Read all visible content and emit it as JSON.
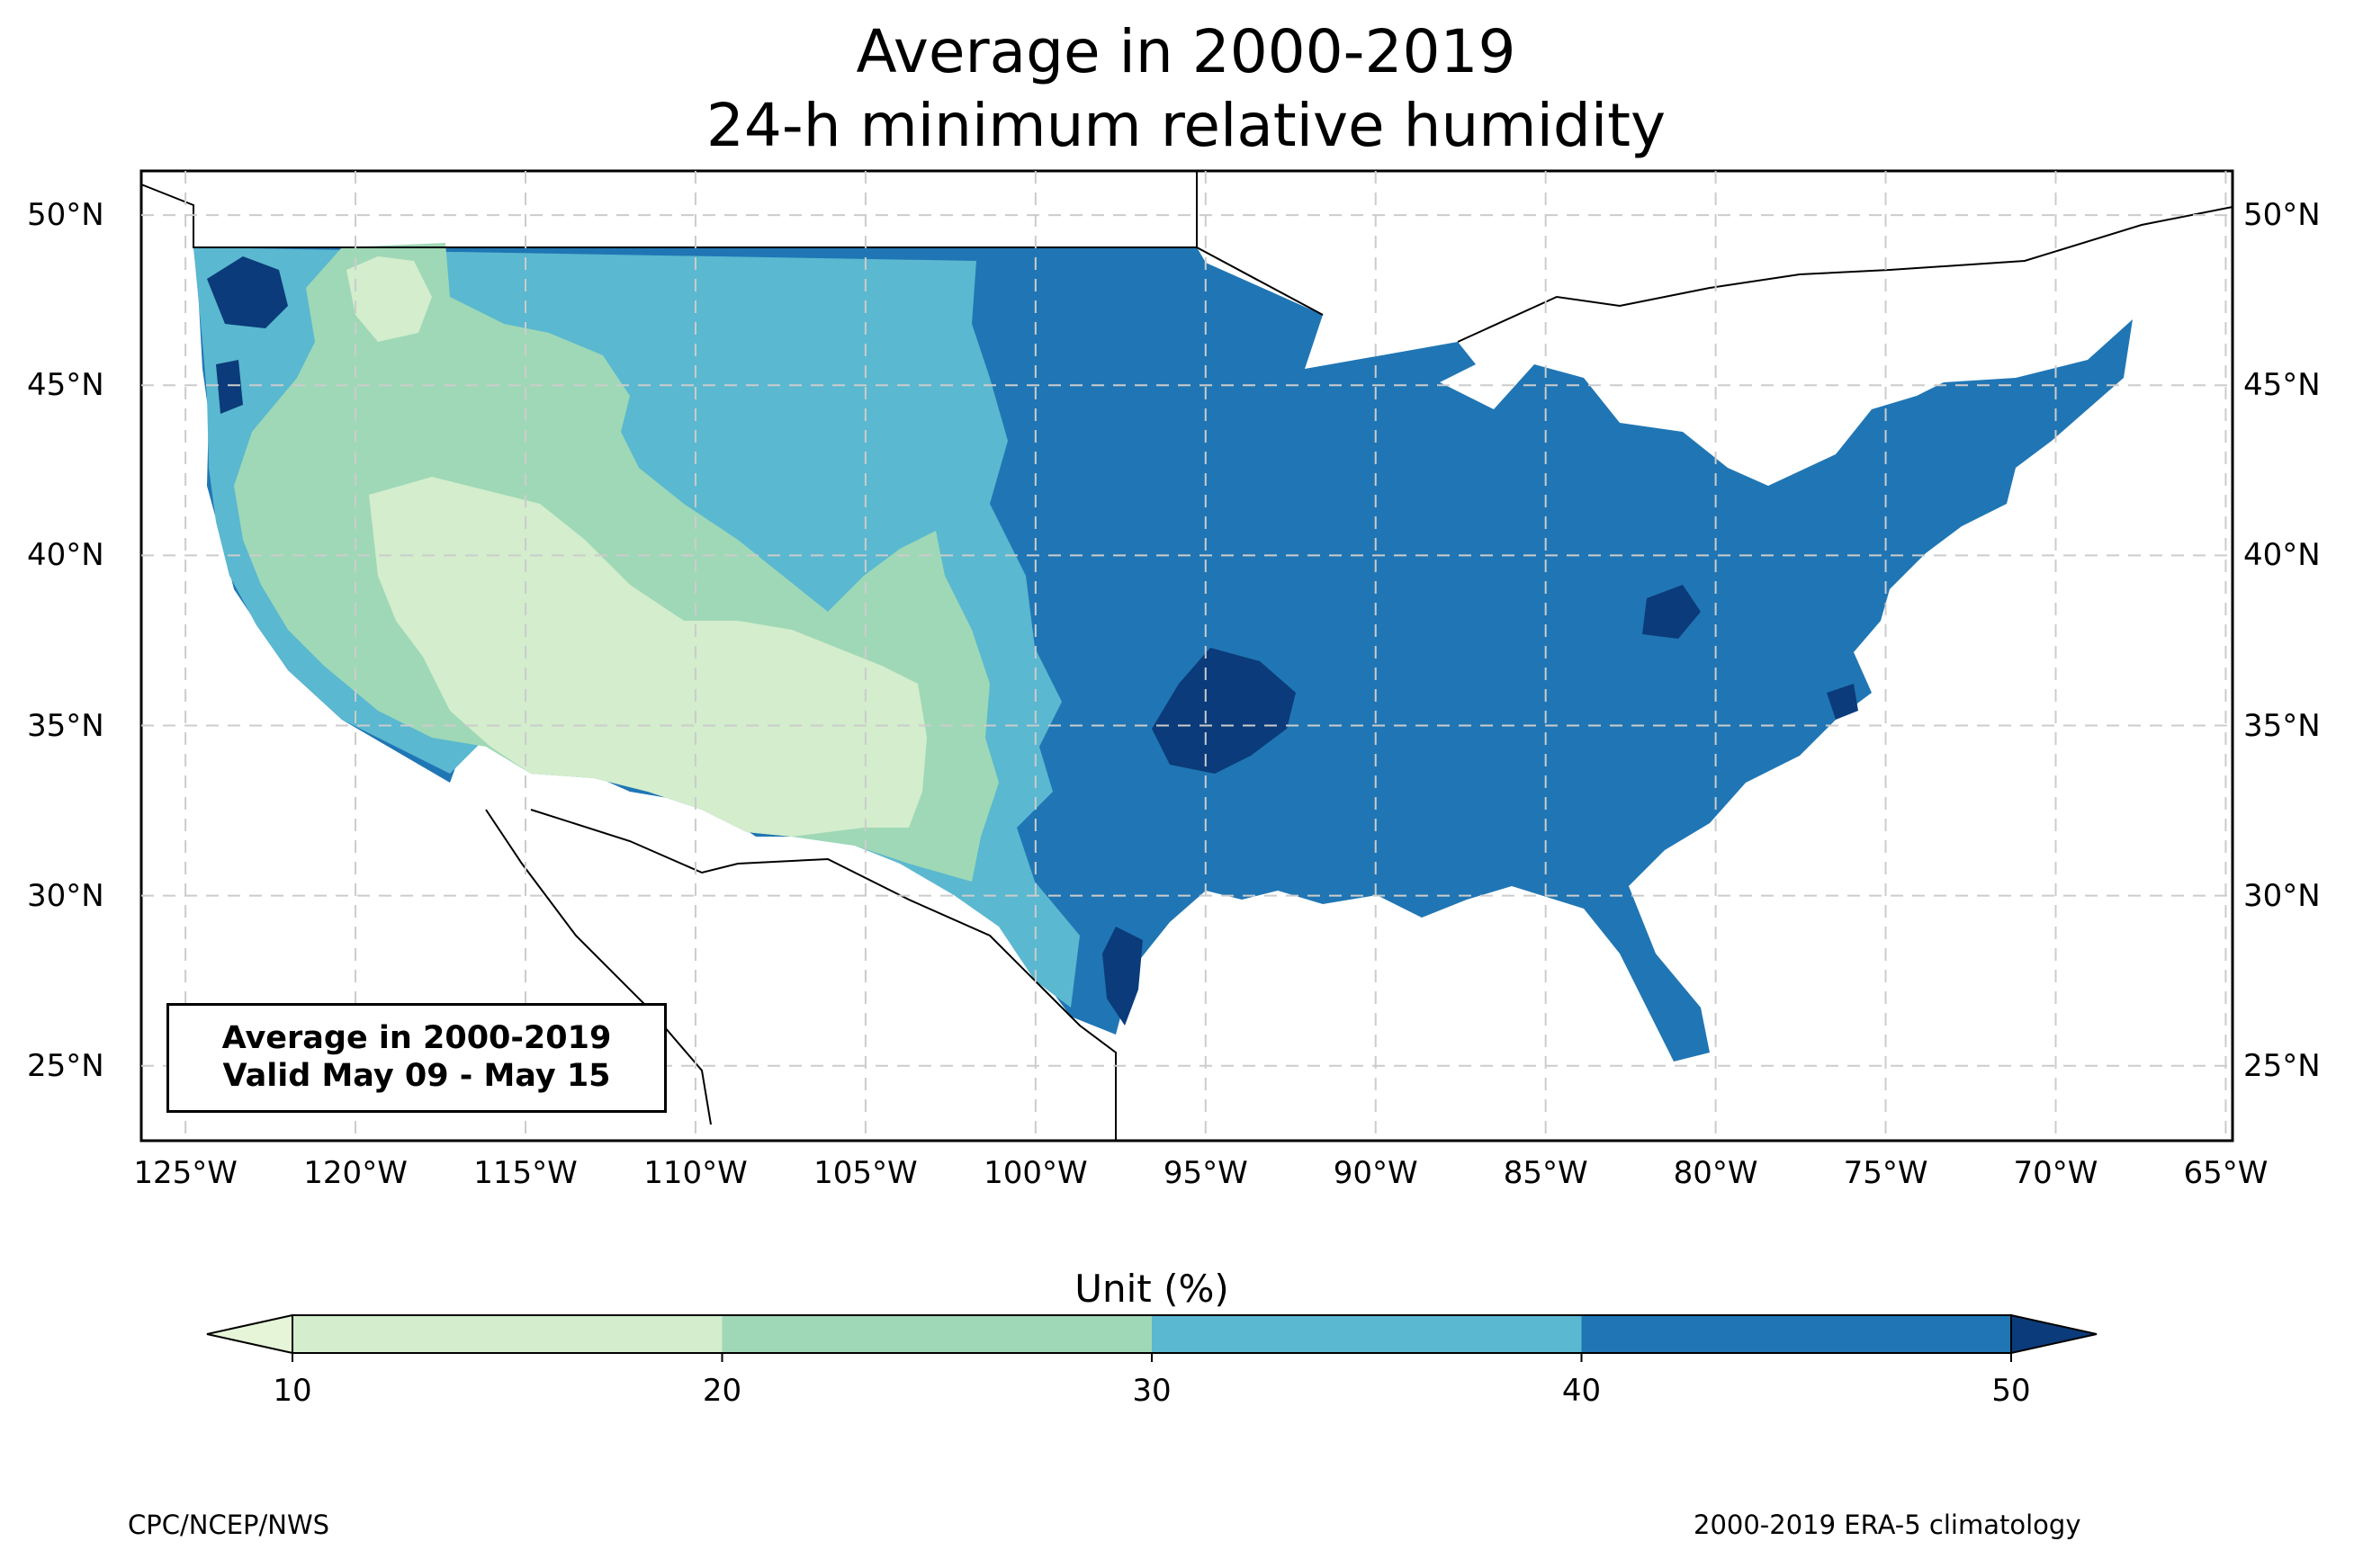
{
  "title": {
    "line1": "Average in 2000-2019",
    "line2": "24-h minimum relative humidity"
  },
  "map": {
    "lat_ticks": [
      "50°N",
      "45°N",
      "40°N",
      "35°N",
      "30°N",
      "25°N"
    ],
    "lon_ticks": [
      "125°W",
      "120°W",
      "115°W",
      "110°W",
      "105°W",
      "100°W",
      "95°W",
      "90°W",
      "85°W",
      "80°W",
      "75°W",
      "70°W",
      "65°W"
    ],
    "gridlines": true,
    "projection_extent": {
      "lon": [
        -126.3,
        -64.8
      ],
      "lat": [
        22.8,
        51.3
      ]
    }
  },
  "annotation": {
    "line1": "Average in 2000-2019",
    "line2": "Valid May 09 - May 15"
  },
  "colorbar": {
    "label": "Unit (%)",
    "ticks": [
      "10",
      "20",
      "30",
      "40",
      "50"
    ],
    "levels": [
      10,
      20,
      30,
      40,
      50
    ],
    "colors": {
      "under": "#e6f5d8",
      "10-20": "#d3edcd",
      "20-30": "#9fd8b6",
      "30-40": "#5ab8d0",
      "40-50": "#2076b4",
      "over": "#0b3b7a"
    }
  },
  "footer": {
    "left": "CPC/NCEP/NWS",
    "right": "2000-2019 ERA-5 climatology"
  }
}
